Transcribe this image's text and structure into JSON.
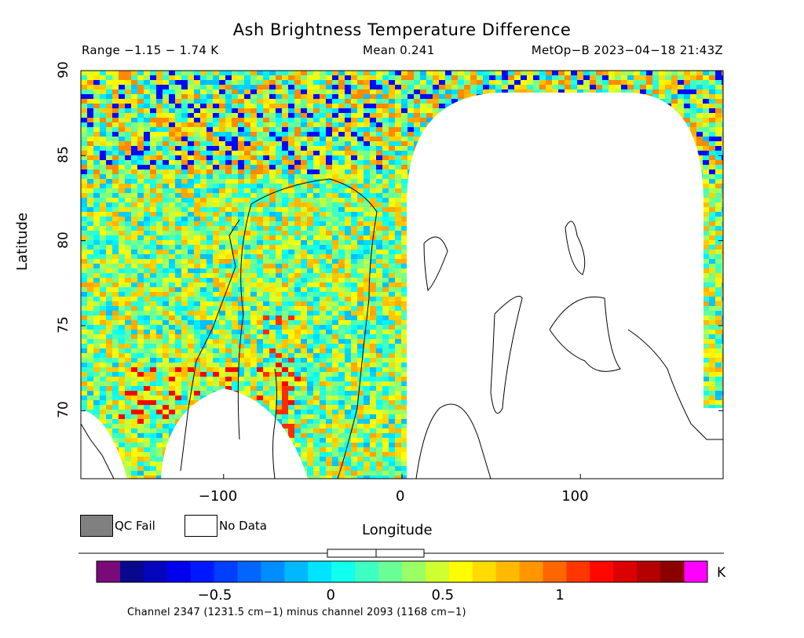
{
  "header": {
    "title": "Ash Brightness Temperature Difference",
    "range": "Range −1.15 − 1.74 K",
    "mean": "Mean 0.241",
    "satellite": "MetOp−B 2023−04−18 21:43Z"
  },
  "legend": {
    "qc_fail": "QC Fail",
    "no_data": "No Data"
  },
  "colorbar": {
    "unit": "K",
    "ticks": [
      "−0.5",
      "0",
      "0.5",
      "1"
    ],
    "tick_values": [
      -0.5,
      0,
      0.5,
      1
    ],
    "range": [
      -0.92,
      1.54
    ],
    "under_color": "#7a0a7a",
    "over_color": "#ff00ff",
    "qc_fail_color": "#808080",
    "no_data_color": "#ffffff"
  },
  "footer": "Channel 2347 (1231.5 cm−1) minus channel 2093 (1168 cm−1)",
  "chart_data": {
    "type": "heatmap",
    "title": "Ash Brightness Temperature Difference",
    "xlabel": "Longitude",
    "ylabel": "Latitude",
    "xlim": [
      -180,
      180
    ],
    "ylim": [
      66,
      90
    ],
    "xticks": [
      -100,
      0,
      100
    ],
    "xtick_labels": [
      "−100",
      "0",
      "100"
    ],
    "yticks": [
      70,
      75,
      80,
      85,
      90
    ],
    "ytick_labels": [
      "70",
      "75",
      "80",
      "85",
      "90"
    ],
    "value_range": [
      -1.15,
      1.74
    ],
    "mean": 0.241,
    "units": "K",
    "projection": "cylindrical",
    "no_data_regions": [
      "swath gap east of 0° longitude",
      "area south of swath near −130° to −60° longitude",
      "area near −180° longitude"
    ]
  }
}
